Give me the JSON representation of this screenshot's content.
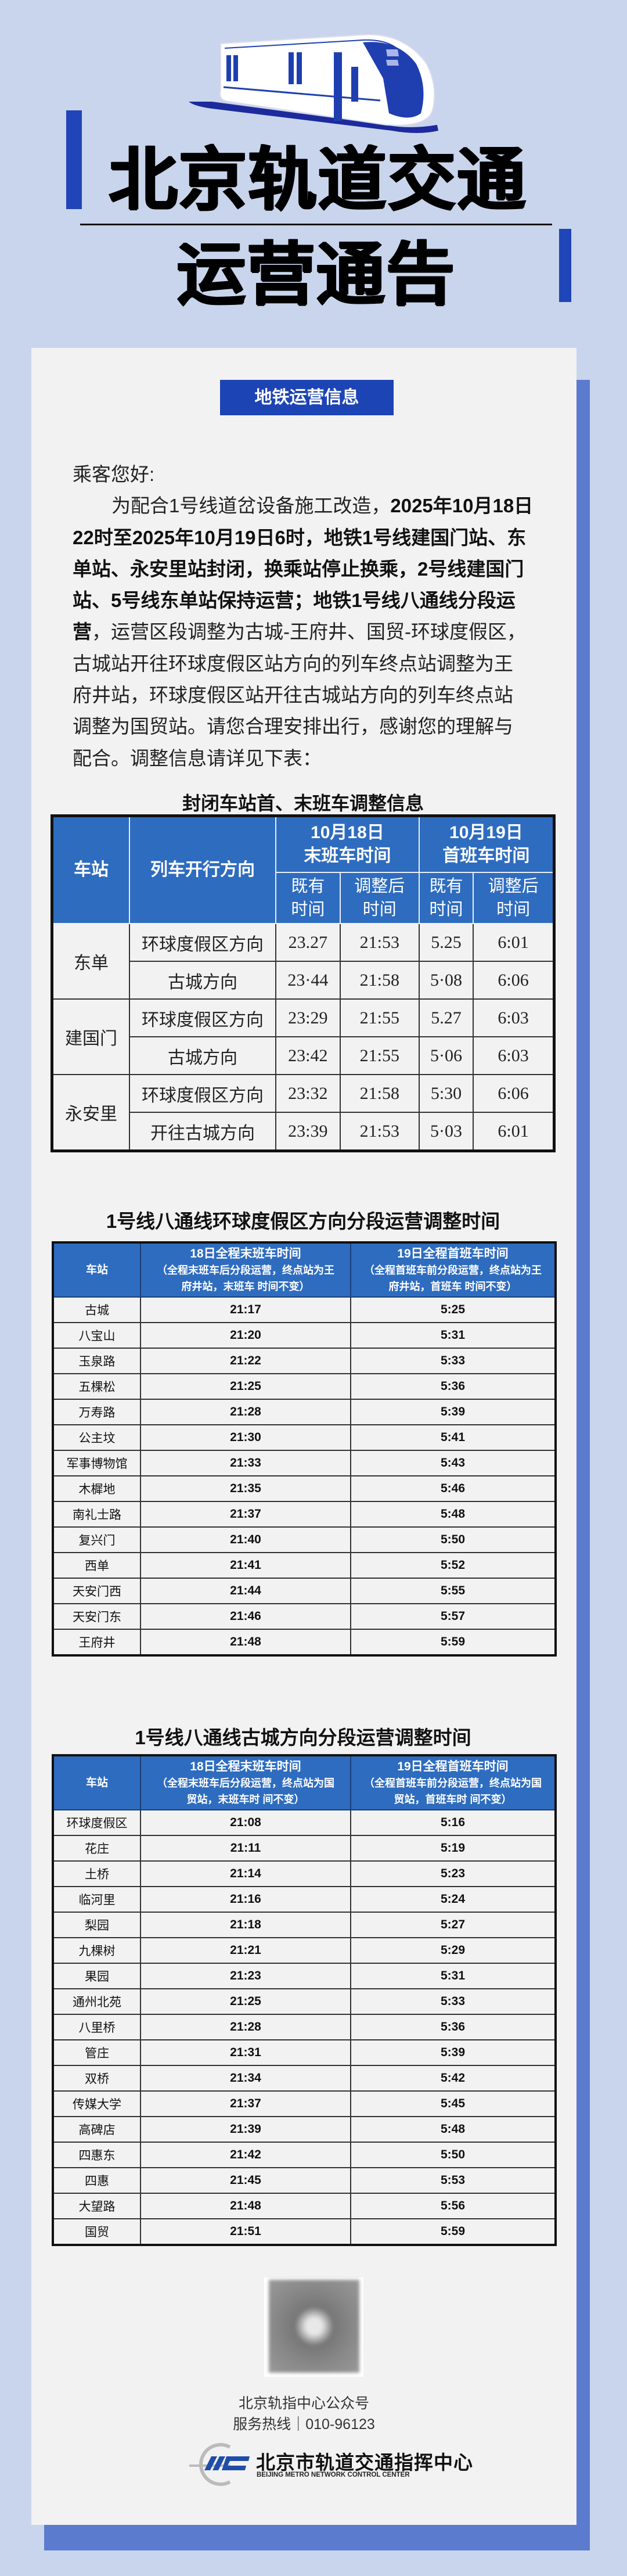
{
  "colors": {
    "background": "#c9d5ec",
    "accent_blue": "#1f45b8",
    "table_header": "#2e6cbf",
    "card": "#f2f2f2",
    "shadow": "#5b7bcf"
  },
  "header": {
    "title_line1": "北京轨道交通",
    "title_line2": "运营通告",
    "illustration": "subway-train-icon"
  },
  "badge": "地铁运营信息",
  "notice": {
    "lines": [
      {
        "indent": false,
        "segments": [
          {
            "text": "乘客您好:",
            "bold": false
          }
        ]
      },
      {
        "indent": true,
        "segments": [
          {
            "text": "为配合1号线道岔设备施工改造，",
            "bold": false
          },
          {
            "text": "2025年10月18日",
            "bold": true
          }
        ]
      },
      {
        "indent": false,
        "segments": [
          {
            "text": "22时至2025年10月19日6时，地铁1号线建国门站、东",
            "bold": true
          }
        ]
      },
      {
        "indent": false,
        "segments": [
          {
            "text": "单站、永安里站封闭，换乘站停止换乘，2号线建国门",
            "bold": true
          }
        ]
      },
      {
        "indent": false,
        "segments": [
          {
            "text": "站、5号线东单站保持运营；地铁1号线八通线分段运",
            "bold": true
          }
        ]
      },
      {
        "indent": false,
        "segments": [
          {
            "text": "营",
            "bold": true
          },
          {
            "text": "，运营区段调整为古城-王府井、国贸-环球度假区，",
            "bold": false
          }
        ]
      },
      {
        "indent": false,
        "segments": [
          {
            "text": "古城站开往环球度假区站方向的列车终点站调整为王",
            "bold": false
          }
        ]
      },
      {
        "indent": false,
        "segments": [
          {
            "text": "府井站，环球度假区站开往古城站方向的列车终点站",
            "bold": false
          }
        ]
      },
      {
        "indent": false,
        "segments": [
          {
            "text": "调整为国贸站。请您合理安排出行，感谢您的理解与",
            "bold": false
          }
        ]
      },
      {
        "indent": false,
        "segments": [
          {
            "text": "配合。调整信息请详见下表：",
            "bold": false
          }
        ]
      }
    ]
  },
  "table1": {
    "title": "封闭车站首、末班车调整信息",
    "headers": {
      "station": "车站",
      "direction": "列车开行方向",
      "last_group": "10月18日\n末班车时间",
      "first_group": "10月19日\n首班车时间",
      "orig": "既有\n时间",
      "adjusted": "调整后\n时间"
    },
    "groups": [
      {
        "station": "东单",
        "rows": [
          {
            "direction": "环球度假区方向",
            "last_orig": "23.27",
            "last_adj": "21:53",
            "first_orig": "5.25",
            "first_adj": "6:01"
          },
          {
            "direction": "古城方向",
            "last_orig": "23·44",
            "last_adj": "21:58",
            "first_orig": "5·08",
            "first_adj": "6:06"
          }
        ]
      },
      {
        "station": "建国门",
        "rows": [
          {
            "direction": "环球度假区方向",
            "last_orig": "23:29",
            "last_adj": "21:55",
            "first_orig": "5.27",
            "first_adj": "6:03"
          },
          {
            "direction": "古城方向",
            "last_orig": "23:42",
            "last_adj": "21:55",
            "first_orig": "5·06",
            "first_adj": "6:03"
          }
        ]
      },
      {
        "station": "永安里",
        "rows": [
          {
            "direction": "环球度假区方向",
            "last_orig": "23:32",
            "last_adj": "21:58",
            "first_orig": "5:30",
            "first_adj": "6:06"
          },
          {
            "direction": "开往古城方向",
            "last_orig": "23:39",
            "last_adj": "21:53",
            "first_orig": "5·03",
            "first_adj": "6:01"
          }
        ]
      }
    ]
  },
  "table2": {
    "title": "1号线八通线环球度假区方向分段运营调整时间",
    "headers": {
      "station": "车站",
      "last_main": "18日全程末班车时间",
      "last_note1": "（全程末班车后分段运营，终点站为王",
      "last_note2": "府井站，末班车 时间不变）",
      "first_main": "19日全程首班车时间",
      "first_note1": "（全程首班车前分段运营，终点站为王",
      "first_note2": "府井站，首班车 时间不变）"
    },
    "rows": [
      [
        "古城",
        "21:17",
        "5:25"
      ],
      [
        "八宝山",
        "21:20",
        "5:31"
      ],
      [
        "玉泉路",
        "21:22",
        "5:33"
      ],
      [
        "五棵松",
        "21:25",
        "5:36"
      ],
      [
        "万寿路",
        "21:28",
        "5:39"
      ],
      [
        "公主坟",
        "21:30",
        "5:41"
      ],
      [
        "军事博物馆",
        "21:33",
        "5:43"
      ],
      [
        "木樨地",
        "21:35",
        "5:46"
      ],
      [
        "南礼士路",
        "21:37",
        "5:48"
      ],
      [
        "复兴门",
        "21:40",
        "5:50"
      ],
      [
        "西单",
        "21:41",
        "5:52"
      ],
      [
        "天安门西",
        "21:44",
        "5:55"
      ],
      [
        "天安门东",
        "21:46",
        "5:57"
      ],
      [
        "王府井",
        "21:48",
        "5:59"
      ]
    ]
  },
  "table3": {
    "title": "1号线八通线古城方向分段运营调整时间",
    "headers": {
      "station": "车站",
      "last_main": "18日全程末班车时间",
      "last_note1": "（全程末班车后分段运营，终点站为国",
      "last_note2": "贸站，末班车时 间不变）",
      "first_main": "19日全程首班车时间",
      "first_note1": "（全程首班车前分段运营，终点站为国",
      "first_note2": "贸站，首班车时 间不变）"
    },
    "rows": [
      [
        "环球度假区",
        "21:08",
        "5:16"
      ],
      [
        "花庄",
        "21:11",
        "5:19"
      ],
      [
        "土桥",
        "21:14",
        "5:23"
      ],
      [
        "临河里",
        "21:16",
        "5:24"
      ],
      [
        "梨园",
        "21:18",
        "5:27"
      ],
      [
        "九棵树",
        "21:21",
        "5:29"
      ],
      [
        "果园",
        "21:23",
        "5:31"
      ],
      [
        "通州北苑",
        "21:25",
        "5:33"
      ],
      [
        "八里桥",
        "21:28",
        "5:36"
      ],
      [
        "管庄",
        "21:31",
        "5:39"
      ],
      [
        "双桥",
        "21:34",
        "5:42"
      ],
      [
        "传媒大学",
        "21:37",
        "5:45"
      ],
      [
        "高碑店",
        "21:39",
        "5:48"
      ],
      [
        "四惠东",
        "21:42",
        "5:50"
      ],
      [
        "四惠",
        "21:45",
        "5:53"
      ],
      [
        "大望路",
        "21:48",
        "5:56"
      ],
      [
        "国贸",
        "21:51",
        "5:59"
      ]
    ]
  },
  "footer": {
    "qr": "qr-code",
    "account": "北京轨指中心公众号",
    "hotline": "服务热线｜010-96123",
    "logo_cn": "北京市轨道交通指挥中心",
    "logo_en": "BEIJING METRO NETWORK CONTROL CENTER"
  }
}
